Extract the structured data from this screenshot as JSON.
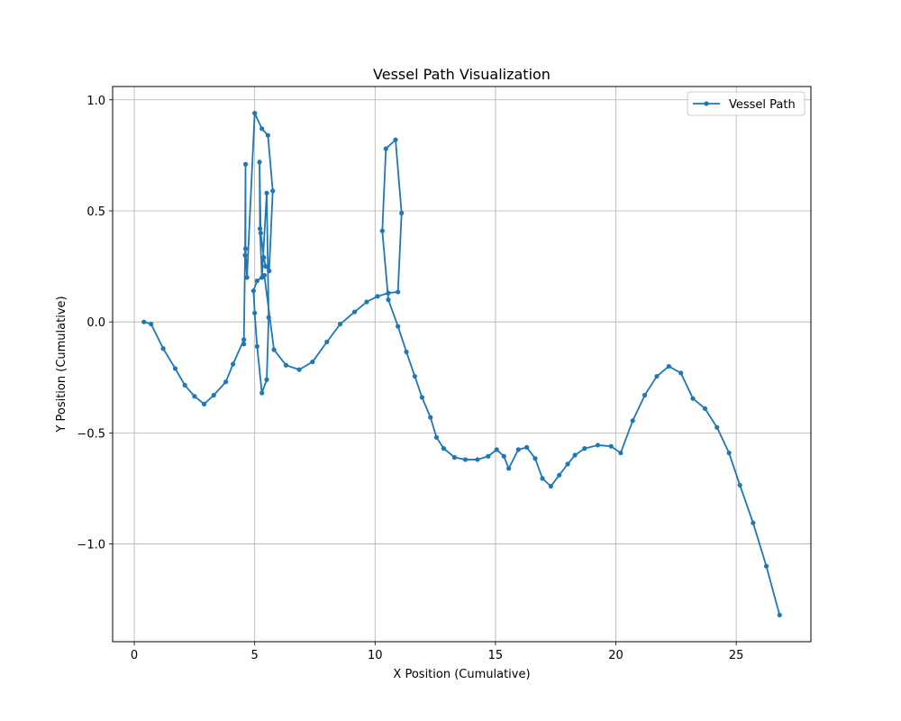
{
  "chart_data": {
    "type": "line",
    "title": "Vessel Path Visualization",
    "xlabel": "X Position (Cumulative)",
    "ylabel": "Y Position (Cumulative)",
    "xlim": [
      -0.9,
      28.1
    ],
    "ylim": [
      -1.44,
      1.06
    ],
    "xticks": [
      0,
      5,
      10,
      15,
      20,
      25
    ],
    "xtick_labels": [
      "0",
      "5",
      "10",
      "15",
      "20",
      "25"
    ],
    "yticks": [
      -1.0,
      -0.5,
      0.0,
      0.5,
      1.0
    ],
    "ytick_labels": [
      "−1.0",
      "−0.5",
      "0.0",
      "0.5",
      "1.0"
    ],
    "grid": true,
    "legend_position": "top-right",
    "series": [
      {
        "name": "Vessel Path",
        "color": "#1f77b4",
        "marker": "circle",
        "x": [
          0.4,
          0.7,
          1.2,
          1.7,
          2.1,
          2.5,
          2.9,
          3.3,
          3.8,
          4.1,
          4.55,
          4.55,
          4.6,
          4.62,
          4.62,
          4.68,
          5.0,
          5.3,
          5.55,
          5.75,
          5.6,
          5.45,
          5.38,
          5.25,
          5.2,
          5.22,
          5.3,
          5.5,
          5.58,
          5.5,
          5.3,
          5.1,
          5.0,
          4.95,
          5.1,
          5.4,
          5.8,
          6.3,
          6.85,
          7.4,
          8.0,
          8.55,
          9.15,
          9.65,
          10.1,
          10.55,
          10.95,
          11.1,
          10.85,
          10.45,
          10.3,
          10.55,
          10.95,
          11.3,
          11.65,
          11.95,
          12.3,
          12.55,
          12.85,
          13.3,
          13.75,
          14.25,
          14.7,
          15.05,
          15.35,
          15.55,
          15.95,
          16.3,
          16.65,
          16.95,
          17.3,
          17.65,
          18.0,
          18.3,
          18.7,
          19.25,
          19.8,
          20.2,
          20.7,
          21.2,
          21.7,
          22.2,
          22.7,
          23.2,
          23.7,
          24.2,
          24.7,
          25.15,
          25.7,
          26.25,
          26.8
        ],
        "y": [
          0.0,
          -0.01,
          -0.12,
          -0.21,
          -0.285,
          -0.335,
          -0.37,
          -0.33,
          -0.27,
          -0.19,
          -0.08,
          -0.1,
          0.3,
          0.71,
          0.33,
          0.2,
          0.94,
          0.87,
          0.84,
          0.59,
          0.23,
          0.25,
          0.29,
          0.4,
          0.72,
          0.42,
          0.2,
          0.58,
          0.02,
          -0.26,
          -0.32,
          -0.11,
          0.04,
          0.14,
          0.185,
          0.21,
          -0.125,
          -0.195,
          -0.215,
          -0.18,
          -0.09,
          -0.01,
          0.045,
          0.09,
          0.115,
          0.13,
          0.135,
          0.49,
          0.82,
          0.78,
          0.41,
          0.1,
          -0.02,
          -0.135,
          -0.245,
          -0.34,
          -0.43,
          -0.52,
          -0.57,
          -0.61,
          -0.62,
          -0.62,
          -0.605,
          -0.575,
          -0.605,
          -0.66,
          -0.575,
          -0.565,
          -0.615,
          -0.705,
          -0.74,
          -0.69,
          -0.64,
          -0.6,
          -0.57,
          -0.555,
          -0.56,
          -0.59,
          -0.445,
          -0.33,
          -0.245,
          -0.2,
          -0.23,
          -0.345,
          -0.39,
          -0.475,
          -0.59,
          -0.735,
          -0.905,
          -1.1,
          -1.32
        ]
      }
    ]
  }
}
